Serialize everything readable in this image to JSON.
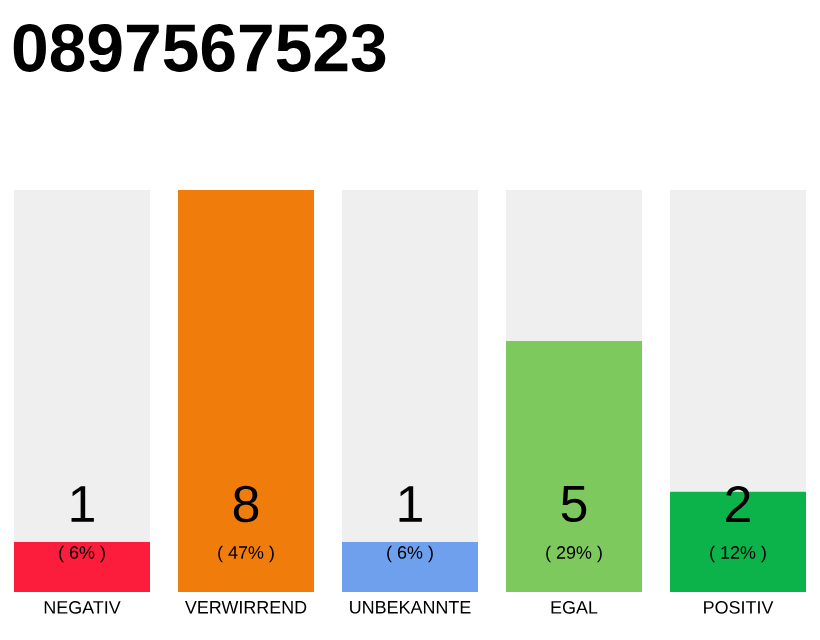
{
  "chart_data": {
    "type": "bar",
    "title": "0897567523",
    "categories": [
      "NEGATIV",
      "VERWIRREND",
      "UNBEKANNTE",
      "EGAL",
      "POSITIV"
    ],
    "stacked": true,
    "series": [
      {
        "values": [
          1,
          8,
          1,
          5,
          2
        ],
        "value_labels": [
          "1",
          "8",
          "1",
          "5",
          "2"
        ],
        "colors": [
          "#fc1c3c",
          "#f07c0c",
          "#6ea0ee",
          "#7dc95e",
          "#0cb34a"
        ]
      },
      {
        "values": [
          7,
          0,
          7,
          3,
          6
        ],
        "color": "#efefef"
      }
    ],
    "annotations": [
      "( 6% )",
      "( 47% )",
      "( 6% )",
      "( 29% )",
      "( 12% )"
    ]
  }
}
